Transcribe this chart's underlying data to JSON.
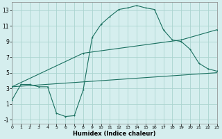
{
  "xlabel": "Humidex (Indice chaleur)",
  "bg_color": "#d5eeee",
  "grid_color": "#aad4d0",
  "line_color": "#1a7060",
  "xlim": [
    0,
    23
  ],
  "ylim": [
    -1.5,
    14.0
  ],
  "xticks": [
    0,
    1,
    2,
    3,
    4,
    5,
    6,
    7,
    8,
    9,
    10,
    11,
    12,
    13,
    14,
    15,
    16,
    17,
    18,
    19,
    20,
    21,
    22,
    23
  ],
  "yticks": [
    -1,
    1,
    3,
    5,
    7,
    9,
    11,
    13
  ],
  "line1_x": [
    0,
    1,
    2,
    3,
    4,
    5,
    6,
    7,
    8,
    9,
    10,
    11,
    12,
    13,
    14,
    15,
    16,
    17,
    18,
    19,
    20,
    21,
    22,
    23
  ],
  "line1_y": [
    1.5,
    3.5,
    3.5,
    3.2,
    3.2,
    -0.2,
    -0.6,
    -0.5,
    2.8,
    9.5,
    11.2,
    12.2,
    13.1,
    13.3,
    13.6,
    13.3,
    13.1,
    10.5,
    9.2,
    9.0,
    8.0,
    6.2,
    5.5,
    5.2
  ],
  "line2_x": [
    0,
    8,
    19,
    23
  ],
  "line2_y": [
    3.2,
    7.5,
    9.2,
    10.5
  ],
  "line3_x": [
    0,
    23
  ],
  "line3_y": [
    3.2,
    5.0
  ]
}
